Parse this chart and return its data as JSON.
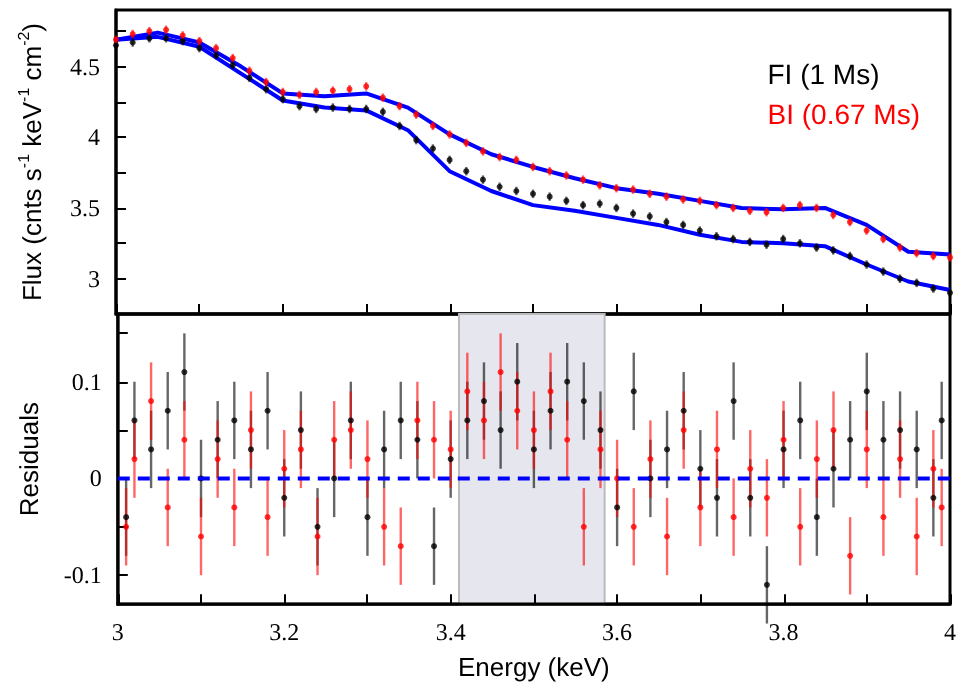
{
  "chart_data": [
    {
      "type": "scatter",
      "ylabel": "Flux (cnts s$^{-1}$ keV$^{-1}$ cm$^{-2}$)",
      "legend": "top right",
      "tick_labels": "y",
      "marker": "circle",
      "x": [
        3.0,
        3.02,
        3.04,
        3.06,
        3.08,
        3.1,
        3.12,
        3.14,
        3.16,
        3.18,
        3.2,
        3.22,
        3.24,
        3.26,
        3.28,
        3.3,
        3.32,
        3.34,
        3.36,
        3.38,
        3.4,
        3.42,
        3.44,
        3.46,
        3.48,
        3.5,
        3.52,
        3.54,
        3.56,
        3.58,
        3.6,
        3.62,
        3.64,
        3.66,
        3.68,
        3.7,
        3.72,
        3.74,
        3.76,
        3.78,
        3.8,
        3.82,
        3.84,
        3.86,
        3.88,
        3.9,
        3.92,
        3.94,
        3.96,
        3.98,
        4.0
      ],
      "xlim": [
        3,
        4
      ],
      "xticks": [
        3,
        {
          "value": 3.1,
          "label": null
        },
        3.2,
        {
          "value": 3.3,
          "label": null
        },
        3.4,
        {
          "value": 3.5,
          "label": null
        },
        3.6,
        {
          "value": 3.7,
          "label": null
        },
        3.8,
        {
          "value": 3.9,
          "label": null
        },
        4
      ],
      "ylim": [
        2.75,
        4.9
      ],
      "yticks": [
        3,
        {
          "value": 3.25,
          "label": null
        },
        3.5,
        {
          "value": 3.75,
          "label": null
        },
        4,
        {
          "value": 4.25,
          "label": null
        },
        4.5,
        {
          "value": 4.75,
          "label": null
        }
      ],
      "series": [
        {
          "name": "FI (1 Ms)",
          "color": "#000000",
          "values": [
            4.65,
            4.67,
            4.7,
            4.7,
            4.68,
            4.63,
            4.58,
            4.51,
            4.42,
            4.34,
            4.27,
            4.22,
            4.2,
            4.21,
            4.2,
            4.2,
            4.18,
            4.08,
            3.98,
            3.92,
            3.84,
            3.76,
            3.7,
            3.65,
            3.62,
            3.6,
            3.58,
            3.55,
            3.52,
            3.53,
            3.5,
            3.46,
            3.44,
            3.4,
            3.38,
            3.34,
            3.3,
            3.28,
            3.26,
            3.24,
            3.28,
            3.25,
            3.22,
            3.2,
            3.16,
            3.1,
            3.05,
            3.0,
            2.97,
            2.93,
            2.9
          ],
          "errors": [
            0.03,
            0.03,
            0.03,
            0.03,
            0.03,
            0.03,
            0.03,
            0.03,
            0.03,
            0.03,
            0.03,
            0.03,
            0.03,
            0.03,
            0.03,
            0.03,
            0.03,
            0.03,
            0.03,
            0.03,
            0.03,
            0.03,
            0.03,
            0.03,
            0.03,
            0.03,
            0.03,
            0.03,
            0.03,
            0.03,
            0.03,
            0.03,
            0.03,
            0.03,
            0.03,
            0.03,
            0.03,
            0.03,
            0.03,
            0.03,
            0.03,
            0.03,
            0.03,
            0.03,
            0.03,
            0.03,
            0.03,
            0.03,
            0.03,
            0.03,
            0.03
          ]
        },
        {
          "name": "BI (0.67 Ms)",
          "color": "#ff0000",
          "values": [
            4.69,
            4.73,
            4.75,
            4.76,
            4.72,
            4.68,
            4.63,
            4.56,
            4.47,
            4.39,
            4.32,
            4.3,
            4.32,
            4.33,
            4.34,
            4.36,
            4.28,
            4.22,
            4.16,
            4.08,
            4.02,
            3.96,
            3.9,
            3.86,
            3.84,
            3.79,
            3.76,
            3.73,
            3.7,
            3.66,
            3.64,
            3.63,
            3.6,
            3.58,
            3.56,
            3.55,
            3.52,
            3.5,
            3.48,
            3.47,
            3.5,
            3.52,
            3.5,
            3.45,
            3.4,
            3.34,
            3.28,
            3.22,
            3.18,
            3.16,
            3.15
          ],
          "errors": [
            0.03,
            0.03,
            0.03,
            0.03,
            0.03,
            0.03,
            0.03,
            0.03,
            0.03,
            0.03,
            0.03,
            0.03,
            0.03,
            0.03,
            0.03,
            0.03,
            0.03,
            0.03,
            0.03,
            0.03,
            0.03,
            0.03,
            0.03,
            0.03,
            0.03,
            0.03,
            0.03,
            0.03,
            0.03,
            0.03,
            0.03,
            0.03,
            0.03,
            0.03,
            0.03,
            0.03,
            0.03,
            0.03,
            0.03,
            0.03,
            0.03,
            0.03,
            0.03,
            0.03,
            0.03,
            0.03,
            0.03,
            0.03,
            0.03,
            0.03,
            0.03
          ]
        },
        {
          "type": "line",
          "marker": "none",
          "color": "#0000ff",
          "x": [
            3.0,
            3.05,
            3.1,
            3.15,
            3.2,
            3.25,
            3.3,
            3.35,
            3.4,
            3.45,
            3.5,
            3.55,
            3.6,
            3.65,
            3.7,
            3.75,
            3.8,
            3.85,
            3.9,
            3.95,
            4.0
          ],
          "values": [
            4.69,
            4.71,
            4.64,
            4.45,
            4.26,
            4.21,
            4.19,
            4.05,
            3.76,
            3.62,
            3.52,
            3.48,
            3.43,
            3.38,
            3.31,
            3.26,
            3.25,
            3.23,
            3.1,
            2.98,
            2.92
          ]
        },
        {
          "type": "line",
          "marker": "none",
          "color": "#0000ff",
          "x": [
            3.0,
            3.05,
            3.1,
            3.15,
            3.2,
            3.25,
            3.3,
            3.35,
            3.4,
            3.45,
            3.5,
            3.55,
            3.6,
            3.65,
            3.7,
            3.75,
            3.8,
            3.85,
            3.9,
            3.95,
            4.0
          ],
          "values": [
            4.69,
            4.74,
            4.67,
            4.5,
            4.31,
            4.29,
            4.31,
            4.21,
            4.02,
            3.88,
            3.79,
            3.71,
            3.64,
            3.6,
            3.55,
            3.5,
            3.49,
            3.5,
            3.38,
            3.19,
            3.17
          ]
        }
      ]
    },
    {
      "type": "scatter",
      "xlabel": "Energy (keV)",
      "ylabel": "Residuals",
      "marker": "circle",
      "x": [
        3.01,
        3.02,
        3.04,
        3.06,
        3.08,
        3.1,
        3.12,
        3.14,
        3.16,
        3.18,
        3.2,
        3.22,
        3.24,
        3.26,
        3.28,
        3.3,
        3.32,
        3.34,
        3.36,
        3.38,
        3.4,
        3.42,
        3.44,
        3.46,
        3.48,
        3.5,
        3.52,
        3.54,
        3.56,
        3.58,
        3.6,
        3.62,
        3.64,
        3.66,
        3.68,
        3.7,
        3.72,
        3.74,
        3.76,
        3.78,
        3.8,
        3.82,
        3.84,
        3.86,
        3.88,
        3.9,
        3.92,
        3.94,
        3.96,
        3.98,
        3.99
      ],
      "xlim": [
        3,
        4
      ],
      "xticks": [
        3,
        {
          "value": 3.1,
          "label": null
        },
        3.2,
        {
          "value": 3.3,
          "label": null
        },
        3.4,
        {
          "value": 3.5,
          "label": null
        },
        3.6,
        {
          "value": 3.7,
          "label": null
        },
        3.8,
        {
          "value": 3.9,
          "label": null
        },
        4
      ],
      "ylim": [
        -0.13,
        0.17
      ],
      "yticks": [
        -0.1,
        {
          "value": -0.05,
          "label": null
        },
        0,
        {
          "value": 0.05,
          "label": null
        },
        0.1,
        {
          "value": 0.15,
          "label": null
        }
      ],
      "bands": [
        {
          "axis": "x",
          "from": 3.41,
          "to": 3.585,
          "color": "#e6e6ee"
        }
      ],
      "ref_lines": [
        {
          "axis": "y",
          "value": 0,
          "color": "#0000ff",
          "line_style": "dashed"
        }
      ],
      "series": [
        {
          "color": "#000000",
          "values": [
            -0.04,
            0.06,
            0.03,
            0.07,
            0.11,
            0.0,
            0.04,
            0.06,
            0.03,
            0.07,
            -0.02,
            0.05,
            -0.05,
            0.0,
            0.06,
            -0.04,
            0.03,
            0.06,
            0.04,
            -0.07,
            0.02,
            0.06,
            0.08,
            0.05,
            0.1,
            0.03,
            0.07,
            0.1,
            0.08,
            0.05,
            -0.03,
            0.09,
            0.0,
            0.03,
            0.07,
            0.01,
            -0.02,
            0.08,
            -0.02,
            -0.11,
            0.03,
            0.06,
            -0.04,
            0.01,
            0.04,
            0.09,
            0.04,
            0.05,
            0.03,
            -0.02,
            0.06
          ],
          "errors": [
            0.04,
            0.04,
            0.04,
            0.04,
            0.04,
            0.04,
            0.04,
            0.04,
            0.04,
            0.04,
            0.04,
            0.04,
            0.04,
            0.04,
            0.04,
            0.04,
            0.04,
            0.04,
            0.04,
            0.04,
            0.04,
            0.04,
            0.04,
            0.04,
            0.04,
            0.04,
            0.04,
            0.04,
            0.04,
            0.04,
            0.04,
            0.04,
            0.04,
            0.04,
            0.04,
            0.04,
            0.04,
            0.04,
            0.04,
            0.04,
            0.04,
            0.04,
            0.04,
            0.04,
            0.04,
            0.04,
            0.04,
            0.04,
            0.04,
            0.04,
            0.04
          ]
        },
        {
          "color": "#ff0000",
          "values": [
            -0.05,
            0.02,
            0.08,
            -0.03,
            0.04,
            -0.06,
            0.02,
            -0.03,
            0.05,
            -0.04,
            0.01,
            0.03,
            -0.06,
            0.04,
            0.05,
            0.02,
            -0.05,
            -0.07,
            0.06,
            0.04,
            0.03,
            0.09,
            0.06,
            0.11,
            0.07,
            0.05,
            0.09,
            0.04,
            -0.05,
            0.03,
            0.0,
            -0.05,
            0.02,
            -0.06,
            0.05,
            -0.03,
            0.03,
            -0.04,
            0.01,
            -0.02,
            0.04,
            -0.05,
            0.02,
            0.05,
            -0.08,
            0.03,
            -0.04,
            0.02,
            -0.06,
            0.01,
            -0.03
          ],
          "errors": [
            0.04,
            0.04,
            0.04,
            0.04,
            0.04,
            0.04,
            0.04,
            0.04,
            0.04,
            0.04,
            0.04,
            0.04,
            0.04,
            0.04,
            0.04,
            0.04,
            0.04,
            0.04,
            0.04,
            0.04,
            0.04,
            0.04,
            0.04,
            0.04,
            0.04,
            0.04,
            0.04,
            0.04,
            0.04,
            0.04,
            0.04,
            0.04,
            0.04,
            0.04,
            0.04,
            0.04,
            0.04,
            0.04,
            0.04,
            0.04,
            0.04,
            0.04,
            0.04,
            0.04,
            0.04,
            0.04,
            0.04,
            0.04,
            0.04,
            0.04,
            0.04
          ]
        }
      ]
    }
  ]
}
